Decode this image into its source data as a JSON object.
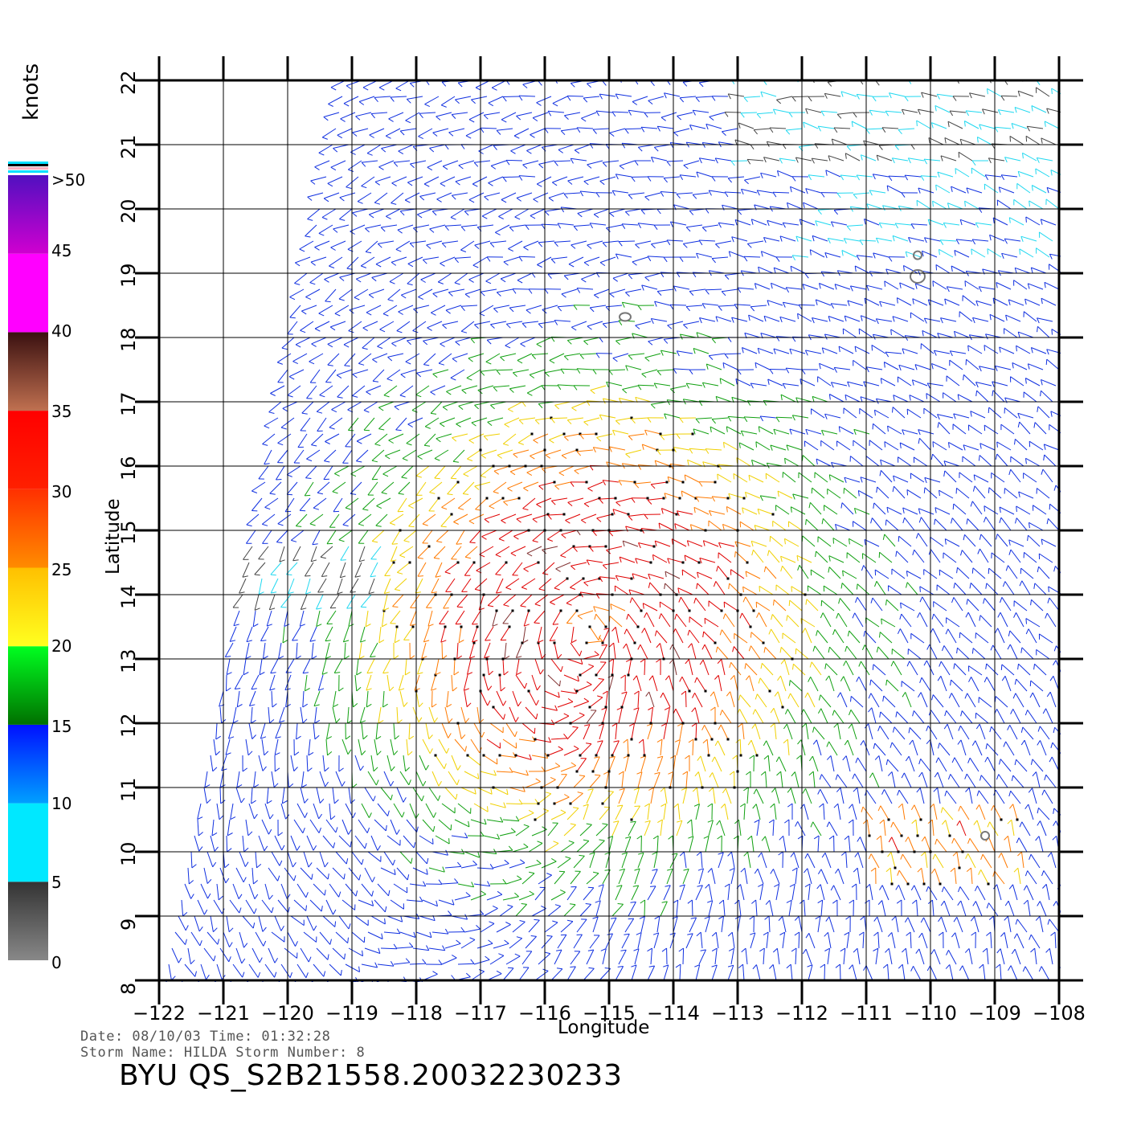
{
  "map": {
    "lon_ticks": [
      "-122",
      "-121",
      "-120",
      "-119",
      "-118",
      "-117",
      "-116",
      "-115",
      "-114",
      "-113",
      "-112",
      "-111",
      "-110",
      "-109",
      "-108"
    ],
    "lat_ticks": [
      "22",
      "21",
      "20",
      "19",
      "18",
      "17",
      "16",
      "15",
      "14",
      "13",
      "12",
      "11",
      "10",
      "9",
      "8"
    ],
    "lon_range": [
      -122,
      -108
    ],
    "lat_range": [
      8,
      22
    ],
    "x_label": "Longitude",
    "y_label": "Latitude"
  },
  "color_scale": {
    "units": "knots",
    "labels": [
      ">50",
      "45",
      "40",
      "35",
      "30",
      "25",
      "20",
      "15",
      "10",
      "5",
      "0"
    ],
    "bands": [
      {
        "from": 0,
        "to": 5,
        "top": "#333333",
        "bottom": "#888888"
      },
      {
        "from": 5,
        "to": 10,
        "top": "#00e8ff",
        "bottom": "#00e8ff"
      },
      {
        "from": 10,
        "to": 15,
        "top": "#0010ff",
        "bottom": "#00a0ff"
      },
      {
        "from": 15,
        "to": 20,
        "top": "#00ff20",
        "bottom": "#007000"
      },
      {
        "from": 20,
        "to": 25,
        "top": "#ffc000",
        "bottom": "#ffff20"
      },
      {
        "from": 25,
        "to": 30,
        "top": "#ff3000",
        "bottom": "#ff8c00"
      },
      {
        "from": 30,
        "to": 35,
        "top": "#ff0000",
        "bottom": "#ff2000"
      },
      {
        "from": 35,
        "to": 40,
        "top": "#3a1010",
        "bottom": "#c07050"
      },
      {
        "from": 40,
        "to": 45,
        "top": "#ff00ff",
        "bottom": "#ff00ff"
      },
      {
        "from": 45,
        "to": 50,
        "top": "#5010c0",
        "bottom": "#d000d0"
      }
    ]
  },
  "footer": {
    "date_time": "Date: 08/10/03   Time: 01:32:28",
    "storm": "Storm  Name:  HILDA    Storm  Number:  8",
    "banner": "BYU  QS_S2B21558.20032230233"
  },
  "storm_center": {
    "lon": -115.2,
    "lat": 13.6
  },
  "land_colour": "#777777"
}
